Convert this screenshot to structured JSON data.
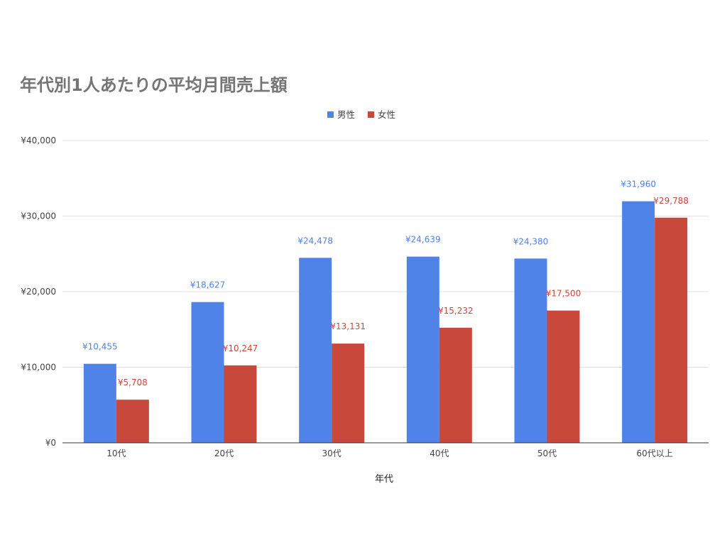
{
  "chart_data": {
    "type": "bar",
    "title": "年代別1人あたりの平均月間売上額",
    "xlabel": "年代",
    "ylabel": "",
    "categories": [
      "10代",
      "20代",
      "30代",
      "40代",
      "50代",
      "60代以上"
    ],
    "series": [
      {
        "name": "男性",
        "color": "#4f83e8",
        "values": [
          10455,
          18627,
          24478,
          24639,
          24380,
          31960
        ],
        "labels": [
          "¥10,455",
          "¥18,627",
          "¥24,478",
          "¥24,639",
          "¥24,380",
          "¥31,960"
        ]
      },
      {
        "name": "女性",
        "color": "#c9483c",
        "values": [
          5708,
          10247,
          13131,
          15232,
          17500,
          29788
        ],
        "labels": [
          "¥5,708",
          "¥10,247",
          "¥13,131",
          "¥15,232",
          "¥17,500",
          "¥29,788"
        ]
      }
    ],
    "ylim": [
      0,
      40000
    ],
    "yticks": [
      0,
      10000,
      20000,
      30000,
      40000
    ],
    "ytick_labels": [
      "¥0",
      "¥10,000",
      "¥20,000",
      "¥30,000",
      "¥40,000"
    ],
    "grid": true,
    "legend_position": "top-center"
  }
}
